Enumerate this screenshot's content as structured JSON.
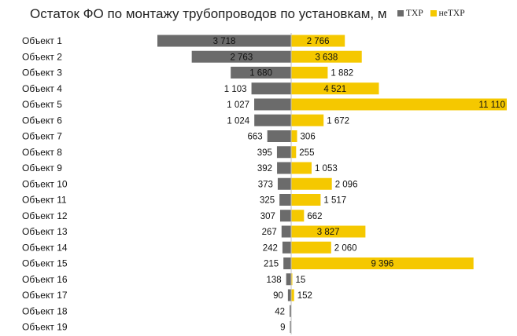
{
  "chart_data": {
    "type": "bar",
    "orientation": "horizontal",
    "title": "Остаток ФО по монтажу трубопроводов по установкам, м",
    "categories": [
      "Объект 1",
      "Объект 2",
      "Объект 3",
      "Объект 4",
      "Объект 5",
      "Объект 6",
      "Объект 7",
      "Объект 8",
      "Объект 9",
      "Объект 10",
      "Объект 11",
      "Объект 12",
      "Объект 13",
      "Объект 14",
      "Объект 15",
      "Объект 16",
      "Объект 17",
      "Объект 18",
      "Объект 19"
    ],
    "series": [
      {
        "name": "ТХР",
        "color": "#6b6b6b",
        "direction": "left",
        "values": [
          3718,
          2763,
          1680,
          1103,
          1027,
          1024,
          663,
          395,
          392,
          373,
          325,
          307,
          267,
          242,
          215,
          138,
          90,
          42,
          9
        ],
        "labels": [
          "3 718",
          "2 763",
          "1 680",
          "1 103",
          "1 027",
          "1 024",
          "663",
          "395",
          "392",
          "373",
          "325",
          "307",
          "267",
          "242",
          "215",
          "138",
          "90",
          "42",
          "9"
        ]
      },
      {
        "name": "неТХР",
        "color": "#f5c800",
        "direction": "right",
        "values": [
          2766,
          3638,
          1882,
          4521,
          11110,
          1672,
          306,
          255,
          1053,
          2096,
          1517,
          662,
          3827,
          2060,
          9396,
          15,
          152,
          null,
          null
        ],
        "labels": [
          "2 766",
          "3 638",
          "1 882",
          "4 521",
          "11 110",
          "1 672",
          "306",
          "255",
          "1 053",
          "2 096",
          "1 517",
          "662",
          "3 827",
          "2 060",
          "9 396",
          "15",
          "152",
          "",
          ""
        ]
      }
    ],
    "legend_position": "top-right",
    "grid": false
  }
}
